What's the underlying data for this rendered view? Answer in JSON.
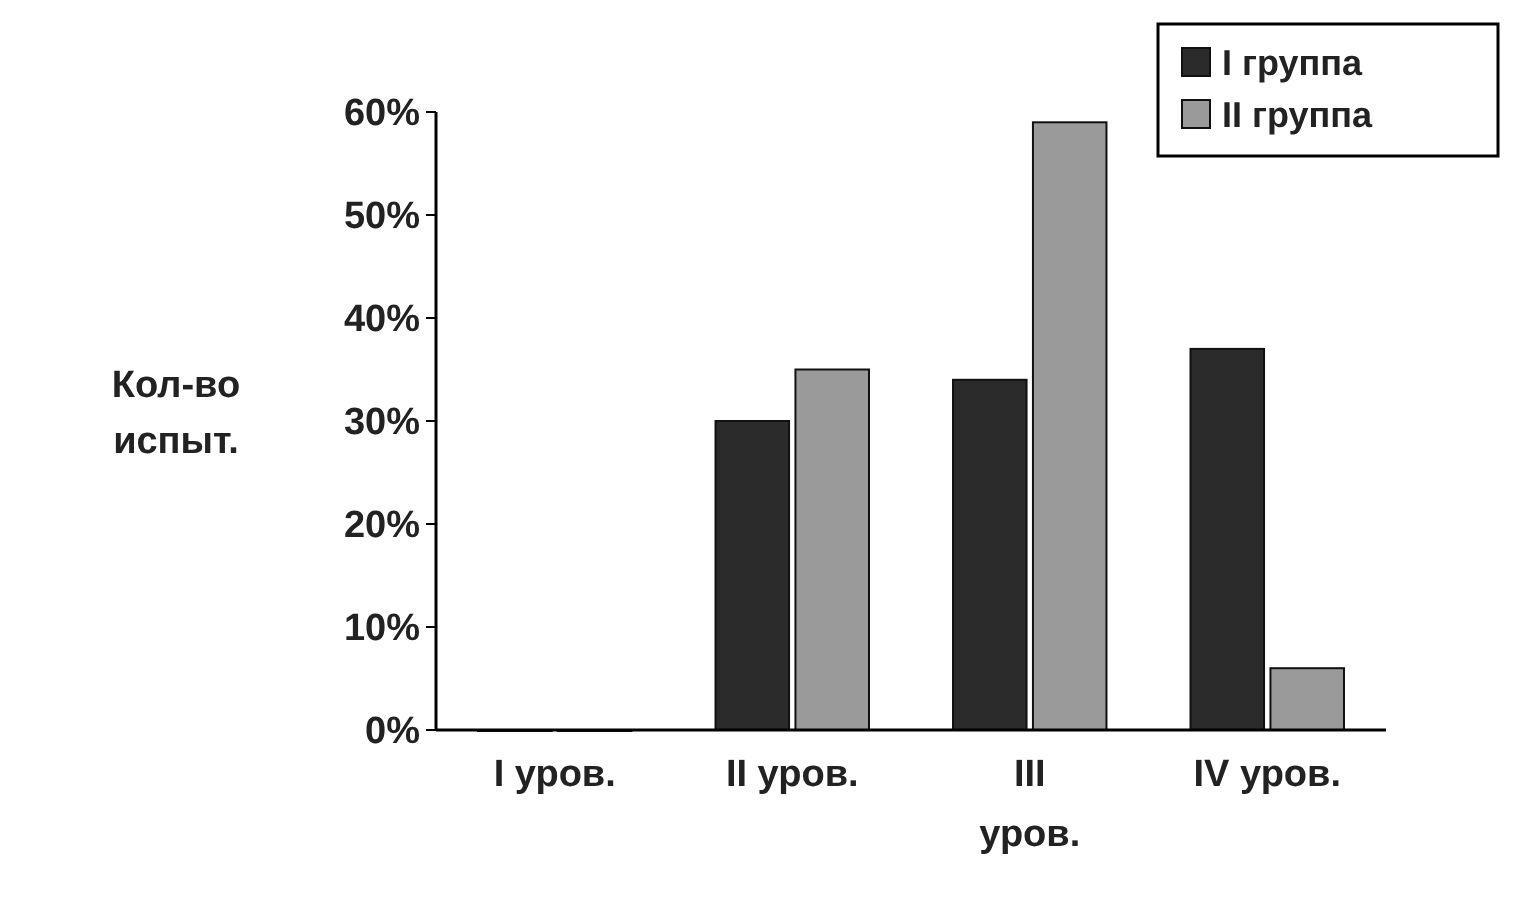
{
  "chart_data": {
    "type": "bar",
    "ylabel": "Кол-во испыт.",
    "categories": [
      "I уров.",
      "II уров.",
      "III уров.",
      "IV уров."
    ],
    "series": [
      {
        "name": "I группа",
        "color": "#2b2b2b",
        "values": [
          0,
          30,
          34,
          37
        ]
      },
      {
        "name": "II группа",
        "color": "#9a9a9a",
        "values": [
          0,
          35,
          59,
          6
        ]
      }
    ],
    "ylim": [
      0,
      60
    ],
    "yticks": [
      {
        "value": 0,
        "label": "0%"
      },
      {
        "value": 10,
        "label": "10%"
      },
      {
        "value": 20,
        "label": "20%"
      },
      {
        "value": 30,
        "label": "30%"
      },
      {
        "value": 40,
        "label": "40%"
      },
      {
        "value": 50,
        "label": "50%"
      },
      {
        "value": 60,
        "label": "60%"
      }
    ],
    "grid": false,
    "legend": "top right"
  }
}
